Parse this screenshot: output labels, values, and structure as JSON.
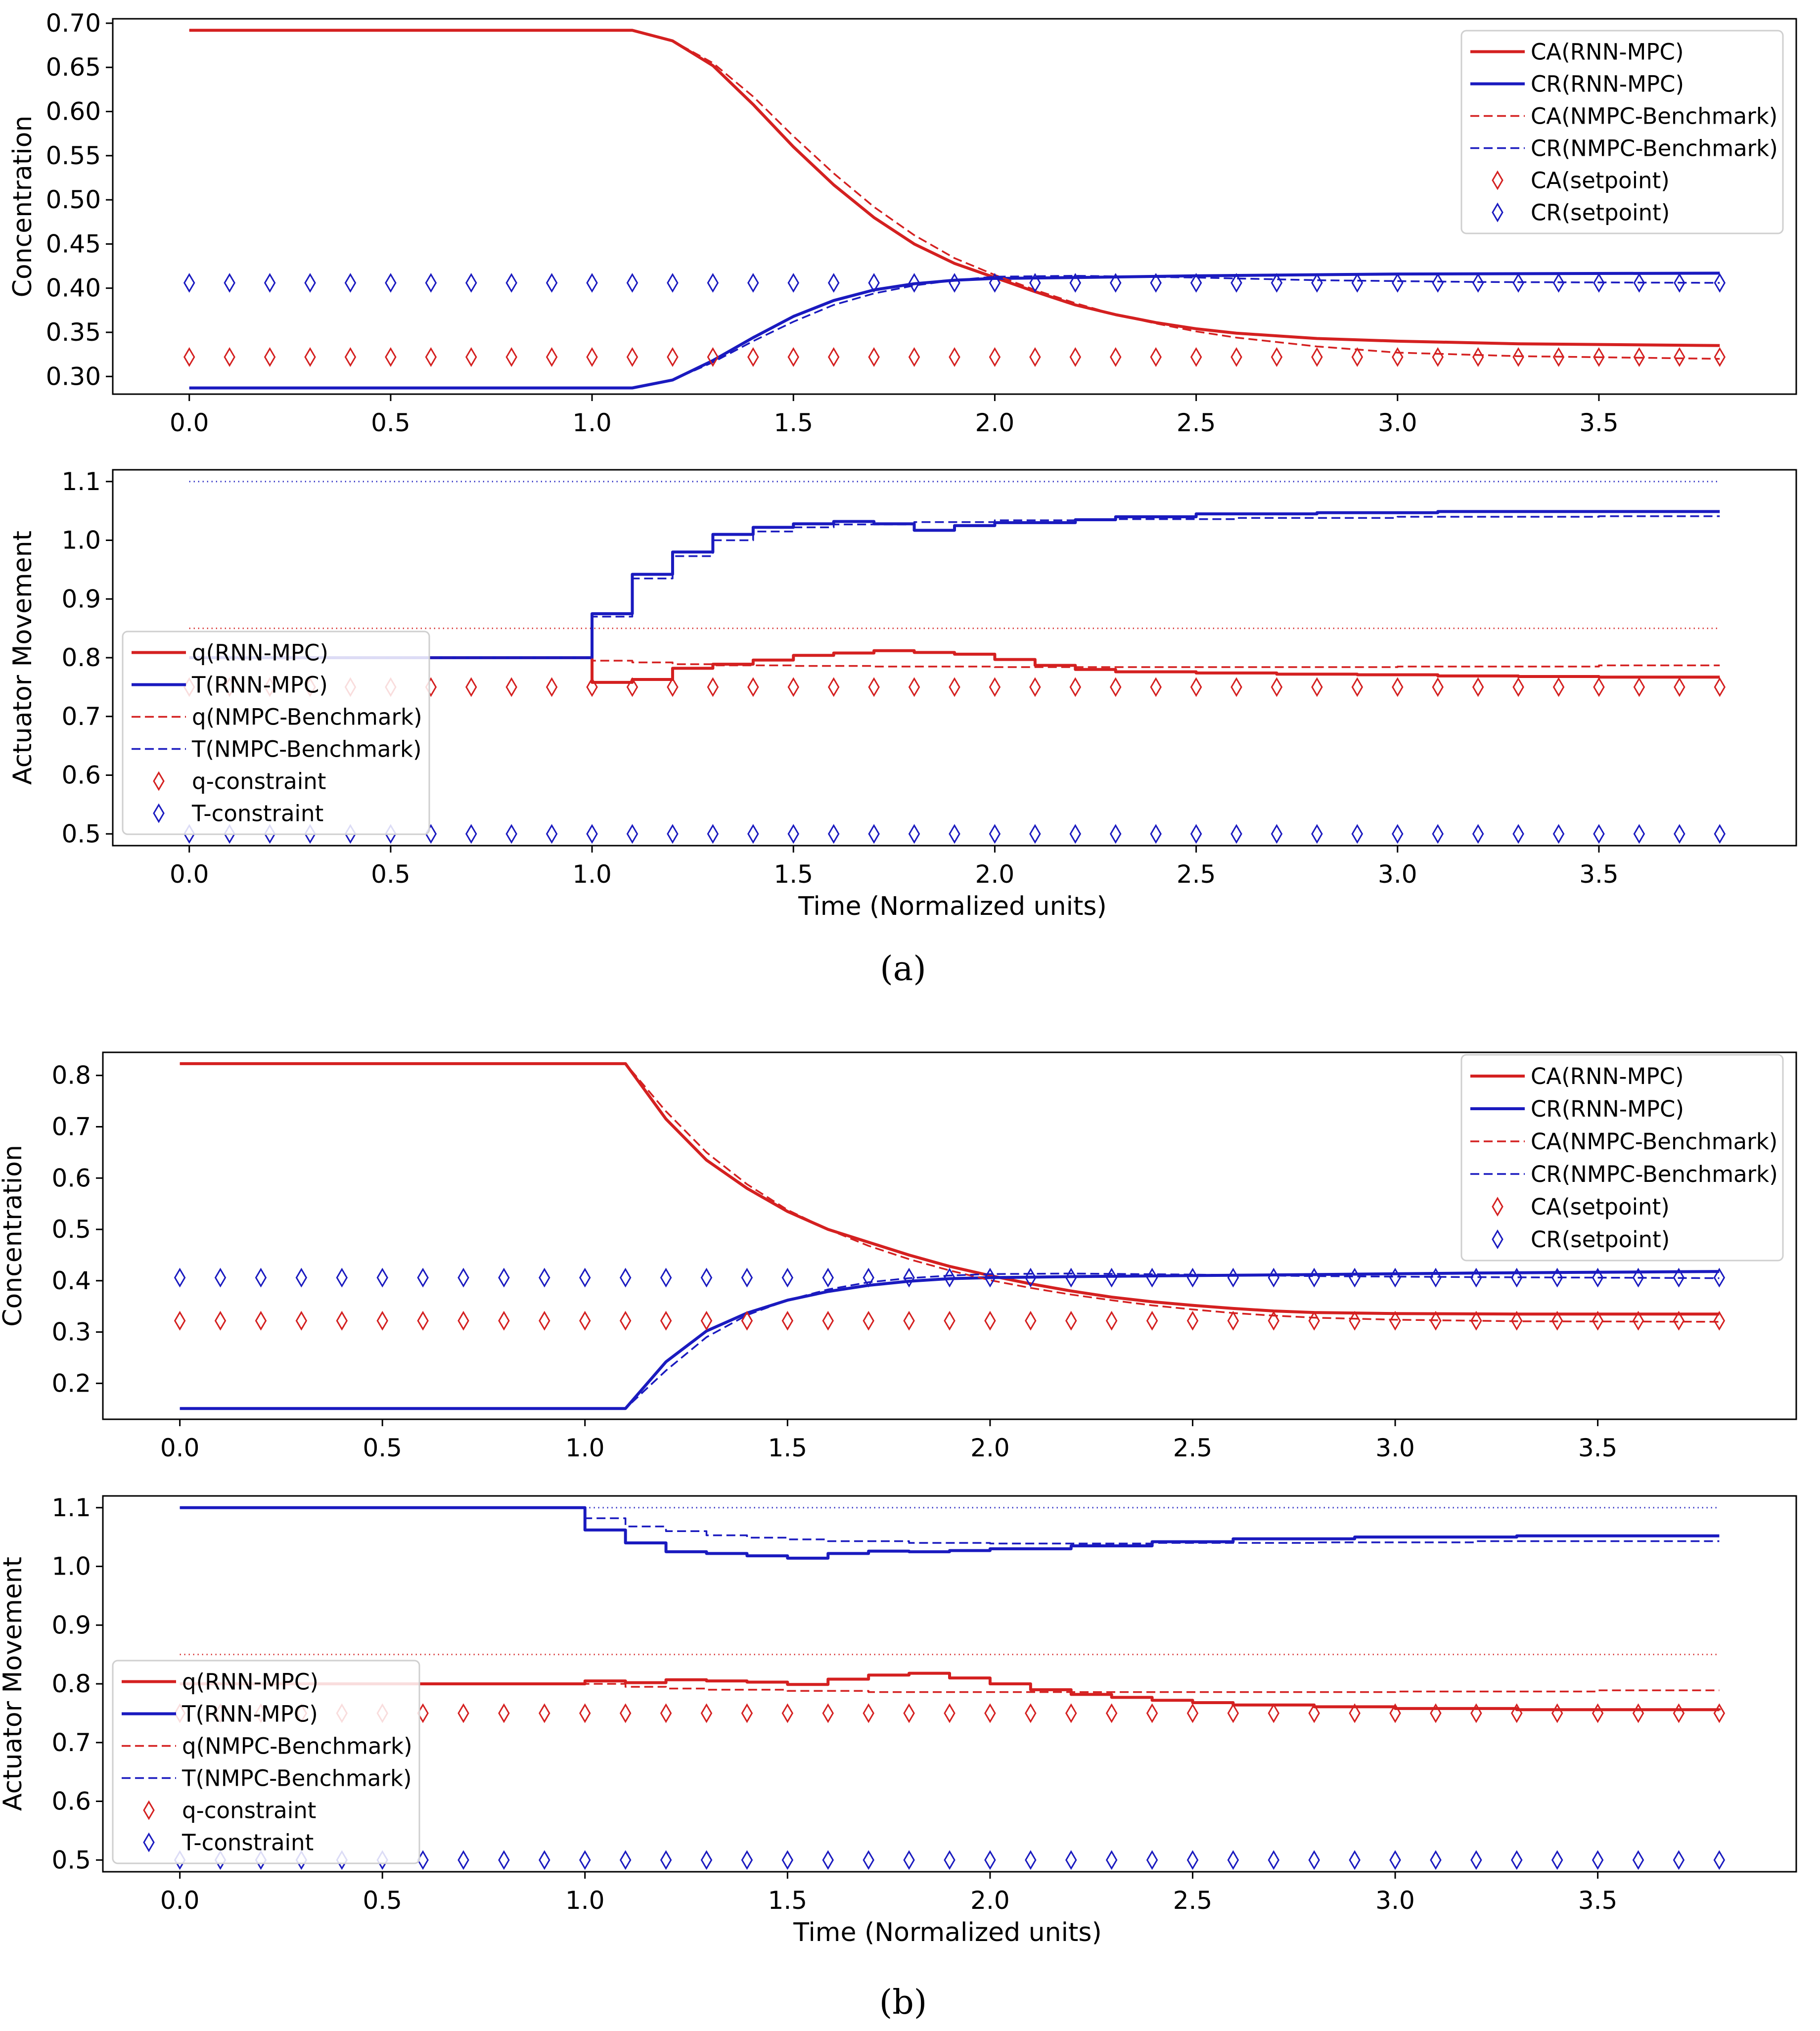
{
  "figure": {
    "panel_labels": [
      "(a)",
      "(b)"
    ],
    "colors": {
      "red": "#d42020",
      "blue": "#1a1abf"
    }
  },
  "chart_data": [
    {
      "type": "line",
      "panel": "a",
      "subplot": "concentration",
      "title": "",
      "xlabel": "",
      "ylabel": "Concentration",
      "xlim": [
        -0.19,
        3.99
      ],
      "ylim": [
        0.28,
        0.705
      ],
      "xticks": [
        0.0,
        0.5,
        1.0,
        1.5,
        2.0,
        2.5,
        3.0,
        3.5
      ],
      "xtick_labels": [
        "0.0",
        "0.5",
        "1.0",
        "1.5",
        "2.0",
        "2.5",
        "3.0",
        "3.5"
      ],
      "yticks": [
        0.3,
        0.35,
        0.4,
        0.45,
        0.5,
        0.55,
        0.6,
        0.65,
        0.7
      ],
      "ytick_labels": [
        "0.30",
        "0.35",
        "0.40",
        "0.45",
        "0.50",
        "0.55",
        "0.60",
        "0.65",
        "0.70"
      ],
      "legend_position": "upper right",
      "series": [
        {
          "name": "CA(RNN-MPC)",
          "color": "red",
          "style": "solid",
          "x": [
            0,
            1.1,
            1.2,
            1.3,
            1.4,
            1.5,
            1.6,
            1.7,
            1.8,
            1.9,
            2.0,
            2.1,
            2.2,
            2.3,
            2.4,
            2.5,
            2.6,
            2.8,
            3.0,
            3.3,
            3.8
          ],
          "y": [
            0.692,
            0.692,
            0.68,
            0.652,
            0.608,
            0.56,
            0.517,
            0.48,
            0.45,
            0.428,
            0.412,
            0.396,
            0.381,
            0.37,
            0.361,
            0.354,
            0.349,
            0.343,
            0.34,
            0.337,
            0.335
          ]
        },
        {
          "name": "CR(RNN-MPC)",
          "color": "blue",
          "style": "solid",
          "x": [
            0,
            1.1,
            1.2,
            1.3,
            1.4,
            1.5,
            1.6,
            1.7,
            1.8,
            1.9,
            2.0,
            2.2,
            2.5,
            3.0,
            3.8
          ],
          "y": [
            0.287,
            0.287,
            0.296,
            0.318,
            0.344,
            0.368,
            0.386,
            0.398,
            0.405,
            0.409,
            0.411,
            0.412,
            0.414,
            0.416,
            0.417
          ]
        },
        {
          "name": "CA(NMPC-Benchmark)",
          "color": "red",
          "style": "dashed",
          "x": [
            0,
            1.1,
            1.2,
            1.3,
            1.4,
            1.5,
            1.6,
            1.7,
            1.8,
            1.9,
            2.0,
            2.1,
            2.2,
            2.3,
            2.4,
            2.5,
            2.6,
            2.8,
            3.0,
            3.3,
            3.8
          ],
          "y": [
            0.692,
            0.692,
            0.68,
            0.655,
            0.617,
            0.572,
            0.53,
            0.492,
            0.46,
            0.434,
            0.415,
            0.398,
            0.383,
            0.37,
            0.36,
            0.351,
            0.344,
            0.334,
            0.327,
            0.323,
            0.32
          ]
        },
        {
          "name": "CR(NMPC-Benchmark)",
          "color": "blue",
          "style": "dashed",
          "x": [
            0,
            1.1,
            1.2,
            1.3,
            1.4,
            1.5,
            1.6,
            1.7,
            1.8,
            1.9,
            2.0,
            2.2,
            2.5,
            2.8,
            3.2,
            3.8
          ],
          "y": [
            0.287,
            0.287,
            0.296,
            0.316,
            0.34,
            0.362,
            0.381,
            0.394,
            0.403,
            0.409,
            0.413,
            0.414,
            0.412,
            0.409,
            0.407,
            0.406
          ]
        },
        {
          "name": "CA(setpoint)",
          "color": "red",
          "style": "marker",
          "x_start": 0,
          "x_step": 0.1,
          "count": 39,
          "y": 0.322
        },
        {
          "name": "CR(setpoint)",
          "color": "blue",
          "style": "marker",
          "x_start": 0,
          "x_step": 0.1,
          "count": 39,
          "y": 0.406
        }
      ]
    },
    {
      "type": "line",
      "panel": "a",
      "subplot": "actuator",
      "title": "",
      "xlabel": "Time (Normalized units)",
      "ylabel": "Actuator Movement",
      "xlim": [
        -0.19,
        3.99
      ],
      "ylim": [
        0.48,
        1.12
      ],
      "xticks": [
        0.0,
        0.5,
        1.0,
        1.5,
        2.0,
        2.5,
        3.0,
        3.5
      ],
      "xtick_labels": [
        "0.0",
        "0.5",
        "1.0",
        "1.5",
        "2.0",
        "2.5",
        "3.0",
        "3.5"
      ],
      "yticks": [
        0.5,
        0.6,
        0.7,
        0.8,
        0.9,
        1.0,
        1.1
      ],
      "ytick_labels": [
        "0.5",
        "0.6",
        "0.7",
        "0.8",
        "0.9",
        "1.0",
        "1.1"
      ],
      "legend_position": "lower left",
      "reference_lines": [
        {
          "y": 1.1,
          "color": "blue",
          "x": [
            0,
            3.8
          ]
        },
        {
          "y": 0.85,
          "color": "red",
          "x": [
            0,
            3.8
          ]
        }
      ],
      "series": [
        {
          "name": "q(RNN-MPC)",
          "color": "red",
          "style": "step",
          "x": [
            0,
            1.0,
            1.1,
            1.2,
            1.3,
            1.4,
            1.5,
            1.6,
            1.7,
            1.8,
            1.9,
            2.0,
            2.1,
            2.2,
            2.3,
            2.5,
            2.7,
            2.9,
            3.1,
            3.3,
            3.5,
            3.8
          ],
          "y": [
            0.8,
            0.758,
            0.763,
            0.782,
            0.789,
            0.796,
            0.804,
            0.808,
            0.812,
            0.809,
            0.806,
            0.797,
            0.787,
            0.78,
            0.776,
            0.774,
            0.772,
            0.771,
            0.769,
            0.768,
            0.767,
            0.767
          ]
        },
        {
          "name": "T(RNN-MPC)",
          "color": "blue",
          "style": "step",
          "x": [
            0,
            1.0,
            1.1,
            1.2,
            1.3,
            1.4,
            1.5,
            1.6,
            1.7,
            1.8,
            1.9,
            2.0,
            2.2,
            2.3,
            2.5,
            2.8,
            3.1,
            3.8
          ],
          "y": [
            0.8,
            0.875,
            0.942,
            0.98,
            1.01,
            1.022,
            1.028,
            1.032,
            1.028,
            1.017,
            1.025,
            1.03,
            1.035,
            1.04,
            1.045,
            1.047,
            1.049,
            1.049
          ]
        },
        {
          "name": "q(NMPC-Benchmark)",
          "color": "red",
          "style": "step",
          "x": [
            0,
            1.0,
            1.1,
            1.2,
            1.3,
            1.5,
            1.7,
            2.0,
            2.3,
            3.0,
            3.5,
            3.8
          ],
          "y": [
            0.8,
            0.795,
            0.792,
            0.789,
            0.787,
            0.786,
            0.785,
            0.784,
            0.784,
            0.785,
            0.787,
            0.787
          ]
        },
        {
          "name": "T(NMPC-Benchmark)",
          "color": "blue",
          "style": "step",
          "x": [
            0,
            1.0,
            1.1,
            1.2,
            1.3,
            1.4,
            1.5,
            1.6,
            1.8,
            2.0,
            2.3,
            2.6,
            3.0,
            3.5,
            3.8
          ],
          "y": [
            0.8,
            0.87,
            0.935,
            0.973,
            1.0,
            1.015,
            1.022,
            1.027,
            1.031,
            1.034,
            1.036,
            1.038,
            1.04,
            1.041,
            1.041
          ]
        },
        {
          "name": "q-constraint",
          "color": "red",
          "style": "marker",
          "x_start": 0,
          "x_step": 0.1,
          "count": 39,
          "y": 0.75
        },
        {
          "name": "T-constraint",
          "color": "blue",
          "style": "marker",
          "x_start": 0,
          "x_step": 0.1,
          "count": 39,
          "y": 0.5
        }
      ]
    },
    {
      "type": "line",
      "panel": "b",
      "subplot": "concentration",
      "title": "",
      "xlabel": "",
      "ylabel": "Concentration",
      "xlim": [
        -0.19,
        3.99
      ],
      "ylim": [
        0.13,
        0.845
      ],
      "xticks": [
        0.0,
        0.5,
        1.0,
        1.5,
        2.0,
        2.5,
        3.0,
        3.5
      ],
      "xtick_labels": [
        "0.0",
        "0.5",
        "1.0",
        "1.5",
        "2.0",
        "2.5",
        "3.0",
        "3.5"
      ],
      "yticks": [
        0.2,
        0.3,
        0.4,
        0.5,
        0.6,
        0.7,
        0.8
      ],
      "ytick_labels": [
        "0.2",
        "0.3",
        "0.4",
        "0.5",
        "0.6",
        "0.7",
        "0.8"
      ],
      "legend_position": "upper right",
      "series": [
        {
          "name": "CA(RNN-MPC)",
          "color": "red",
          "style": "solid",
          "x": [
            0,
            1.1,
            1.2,
            1.3,
            1.4,
            1.5,
            1.6,
            1.7,
            1.8,
            1.9,
            2.0,
            2.1,
            2.2,
            2.3,
            2.4,
            2.5,
            2.6,
            2.7,
            2.8,
            3.0,
            3.3,
            3.8
          ],
          "y": [
            0.823,
            0.823,
            0.715,
            0.635,
            0.58,
            0.535,
            0.5,
            0.475,
            0.45,
            0.428,
            0.41,
            0.394,
            0.38,
            0.368,
            0.359,
            0.352,
            0.346,
            0.341,
            0.338,
            0.336,
            0.335,
            0.335
          ]
        },
        {
          "name": "CR(RNN-MPC)",
          "color": "blue",
          "style": "solid",
          "x": [
            0,
            1.1,
            1.2,
            1.3,
            1.4,
            1.5,
            1.6,
            1.7,
            1.8,
            1.9,
            2.0,
            2.2,
            2.5,
            2.8,
            3.2,
            3.8
          ],
          "y": [
            0.151,
            0.151,
            0.242,
            0.302,
            0.337,
            0.362,
            0.379,
            0.391,
            0.399,
            0.404,
            0.406,
            0.408,
            0.41,
            0.412,
            0.415,
            0.418
          ]
        },
        {
          "name": "CA(NMPC-Benchmark)",
          "color": "red",
          "style": "dashed",
          "x": [
            0,
            1.1,
            1.2,
            1.3,
            1.4,
            1.5,
            1.6,
            1.7,
            1.8,
            1.9,
            2.0,
            2.1,
            2.2,
            2.3,
            2.4,
            2.5,
            2.6,
            2.7,
            2.8,
            3.0,
            3.3,
            3.8
          ],
          "y": [
            0.823,
            0.823,
            0.73,
            0.65,
            0.588,
            0.538,
            0.5,
            0.468,
            0.442,
            0.42,
            0.401,
            0.386,
            0.373,
            0.362,
            0.352,
            0.344,
            0.337,
            0.332,
            0.328,
            0.324,
            0.321,
            0.32
          ]
        },
        {
          "name": "CR(NMPC-Benchmark)",
          "color": "blue",
          "style": "dashed",
          "x": [
            0,
            1.1,
            1.2,
            1.3,
            1.4,
            1.5,
            1.6,
            1.7,
            1.8,
            1.9,
            2.0,
            2.2,
            2.5,
            2.8,
            3.2,
            3.8
          ],
          "y": [
            0.151,
            0.151,
            0.225,
            0.29,
            0.333,
            0.362,
            0.383,
            0.397,
            0.405,
            0.41,
            0.413,
            0.414,
            0.412,
            0.409,
            0.407,
            0.405
          ]
        },
        {
          "name": "CA(setpoint)",
          "color": "red",
          "style": "marker",
          "x_start": 0,
          "x_step": 0.1,
          "count": 39,
          "y": 0.322
        },
        {
          "name": "CR(setpoint)",
          "color": "blue",
          "style": "marker",
          "x_start": 0,
          "x_step": 0.1,
          "count": 39,
          "y": 0.406
        }
      ]
    },
    {
      "type": "line",
      "panel": "b",
      "subplot": "actuator",
      "title": "",
      "xlabel": "Time (Normalized units)",
      "ylabel": "Actuator Movement",
      "xlim": [
        -0.19,
        3.99
      ],
      "ylim": [
        0.48,
        1.12
      ],
      "xticks": [
        0.0,
        0.5,
        1.0,
        1.5,
        2.0,
        2.5,
        3.0,
        3.5
      ],
      "xtick_labels": [
        "0.0",
        "0.5",
        "1.0",
        "1.5",
        "2.0",
        "2.5",
        "3.0",
        "3.5"
      ],
      "yticks": [
        0.5,
        0.6,
        0.7,
        0.8,
        0.9,
        1.0,
        1.1
      ],
      "ytick_labels": [
        "0.5",
        "0.6",
        "0.7",
        "0.8",
        "0.9",
        "1.0",
        "1.1"
      ],
      "legend_position": "lower left",
      "reference_lines": [
        {
          "y": 1.1,
          "color": "blue",
          "x": [
            0,
            3.8
          ]
        },
        {
          "y": 0.85,
          "color": "red",
          "x": [
            0,
            3.8
          ]
        }
      ],
      "series": [
        {
          "name": "q(RNN-MPC)",
          "color": "red",
          "style": "step",
          "x": [
            0,
            1.0,
            1.1,
            1.2,
            1.3,
            1.4,
            1.5,
            1.6,
            1.7,
            1.8,
            1.9,
            2.0,
            2.1,
            2.2,
            2.3,
            2.4,
            2.5,
            2.6,
            2.8,
            3.0,
            3.3,
            3.8
          ],
          "y": [
            0.8,
            0.805,
            0.802,
            0.807,
            0.805,
            0.803,
            0.799,
            0.808,
            0.815,
            0.818,
            0.81,
            0.8,
            0.79,
            0.782,
            0.777,
            0.772,
            0.768,
            0.764,
            0.761,
            0.758,
            0.756,
            0.755
          ]
        },
        {
          "name": "T(RNN-MPC)",
          "color": "blue",
          "style": "step",
          "x": [
            0,
            1.0,
            1.1,
            1.2,
            1.3,
            1.4,
            1.5,
            1.6,
            1.7,
            1.8,
            1.9,
            2.0,
            2.2,
            2.4,
            2.6,
            2.9,
            3.3,
            3.8
          ],
          "y": [
            1.1,
            1.062,
            1.04,
            1.025,
            1.022,
            1.018,
            1.014,
            1.022,
            1.026,
            1.025,
            1.027,
            1.03,
            1.035,
            1.042,
            1.047,
            1.05,
            1.052,
            1.052
          ]
        },
        {
          "name": "q(NMPC-Benchmark)",
          "color": "red",
          "style": "step",
          "x": [
            0,
            1.0,
            1.1,
            1.2,
            1.3,
            1.5,
            1.7,
            2.0,
            2.4,
            3.0,
            3.5,
            3.8
          ],
          "y": [
            0.8,
            0.8,
            0.795,
            0.792,
            0.79,
            0.788,
            0.786,
            0.786,
            0.786,
            0.787,
            0.789,
            0.789
          ]
        },
        {
          "name": "T(NMPC-Benchmark)",
          "color": "blue",
          "style": "step",
          "x": [
            0,
            1.0,
            1.1,
            1.2,
            1.3,
            1.4,
            1.5,
            1.6,
            1.8,
            2.0,
            2.4,
            2.8,
            3.2,
            3.8
          ],
          "y": [
            1.1,
            1.082,
            1.068,
            1.06,
            1.053,
            1.049,
            1.046,
            1.043,
            1.04,
            1.039,
            1.04,
            1.041,
            1.043,
            1.043
          ]
        },
        {
          "name": "q-constraint",
          "color": "red",
          "style": "marker",
          "x_start": 0,
          "x_step": 0.1,
          "count": 39,
          "y": 0.75
        },
        {
          "name": "T-constraint",
          "color": "blue",
          "style": "marker",
          "x_start": 0,
          "x_step": 0.1,
          "count": 39,
          "y": 0.5
        }
      ]
    }
  ]
}
